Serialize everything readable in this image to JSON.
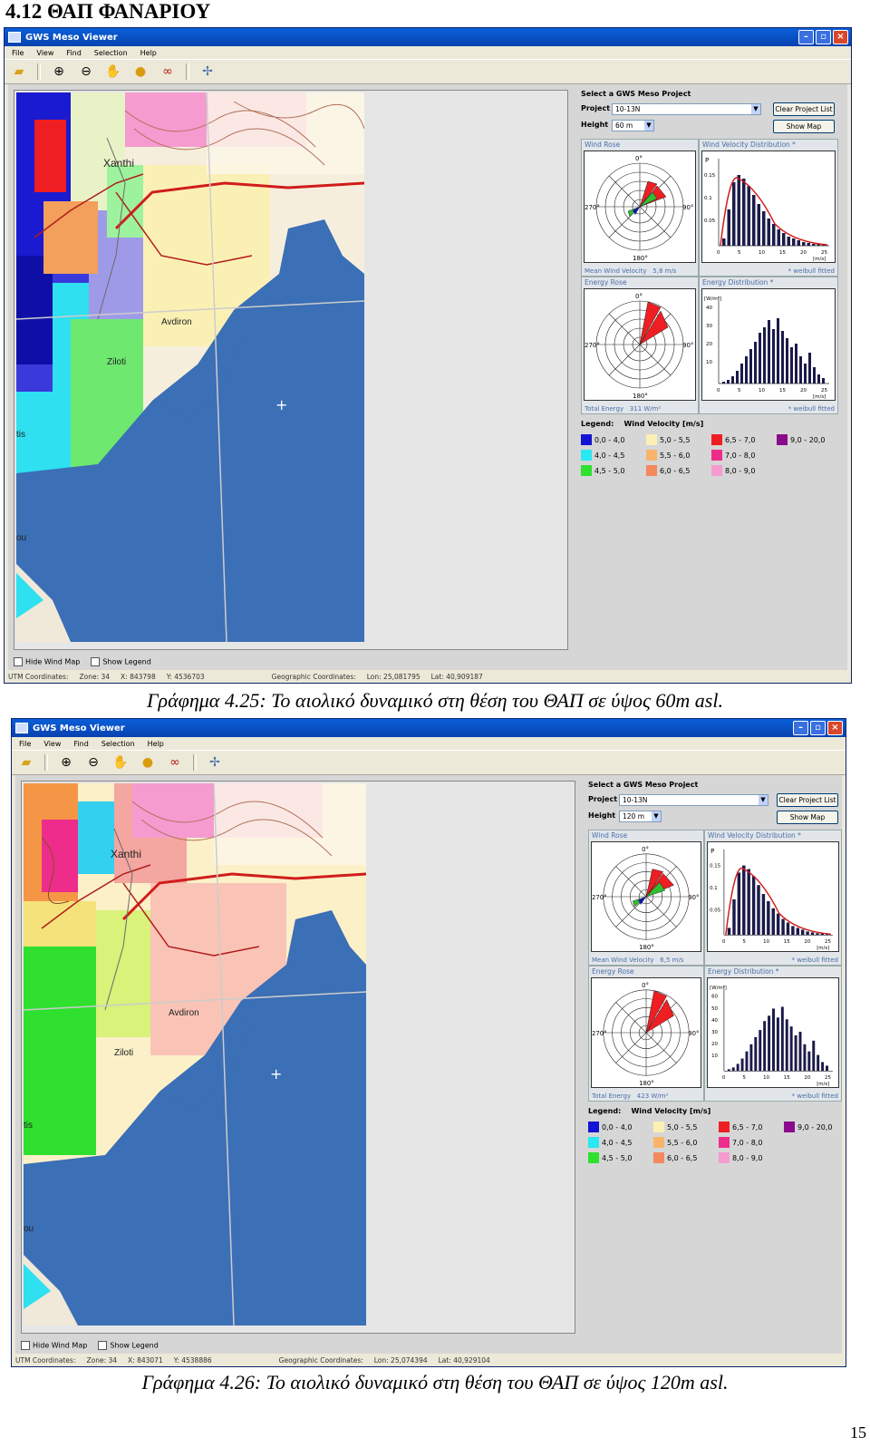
{
  "section_title": "4.12 ΘΑΠ ΦΑΝΑΡΙΟΥ",
  "page_number": "15",
  "common": {
    "app_title": "GWS Meso Viewer",
    "menu": [
      "File",
      "View",
      "Find",
      "Selection",
      "Help"
    ],
    "toolbar_icons": [
      "folder-open-icon",
      "zoom-in-icon",
      "zoom-out-icon",
      "pan-hand-icon",
      "globe-icon",
      "binoculars-icon",
      "wind-turbine-icon"
    ],
    "select_project_title": "Select a GWS Meso Project",
    "project_label": "Project",
    "project_value": "10-13N",
    "height_label": "Height",
    "clear_button": "Clear Project List",
    "show_map_button": "Show Map",
    "wind_rose_title": "Wind Rose",
    "velocity_dist_title": "Wind Velocity Distribution *",
    "energy_rose_title": "Energy Rose",
    "energy_dist_title": "Energy Distribution *",
    "mean_velocity_label": "Mean Wind Velocity",
    "total_energy_label": "Total Energy",
    "weibull_note": "* weibull fitted",
    "legend_title": "Legend:",
    "legend_subtitle": "Wind Velocity [m/s]",
    "hide_wind_map": "Hide Wind Map",
    "show_legend": "Show Legend",
    "utm_label": "UTM Coordinates:",
    "geo_label": "Geographic Coordinates:",
    "map_labels": {
      "xanthi": "Xanthi",
      "avdiron": "Avdiron",
      "ziloti": "Ziloti",
      "tis": "tis",
      "ou": "ou"
    },
    "rose_labels": {
      "n": "0°",
      "e": "90°",
      "s": "180°",
      "w": "270°"
    },
    "velocity_p_label": "P",
    "velocity_ticks_y": [
      "0.15",
      "0.1",
      "0.05"
    ],
    "velocity_ticks_x": [
      "0",
      "5",
      "10",
      "15",
      "20",
      "25"
    ],
    "velocity_unit": "[m/s]",
    "energy_unit_y": "[W/m²]",
    "energy_ticks_x": [
      "0",
      "5",
      "10",
      "15",
      "20",
      "25"
    ],
    "energy_unit_x": "[m/s]",
    "legend_items": [
      {
        "label": "0,0 - 4,0",
        "color": "#1414d4"
      },
      {
        "label": "4,0 - 4,5",
        "color": "#29e8f2"
      },
      {
        "label": "4,5 - 5,0",
        "color": "#2fe02f"
      },
      {
        "label": "5,0 - 5,5",
        "color": "#fbf0b4"
      },
      {
        "label": "5,5 - 6,0",
        "color": "#f8b46b"
      },
      {
        "label": "6,0 - 6,5",
        "color": "#f4895e"
      },
      {
        "label": "6,5 - 7,0",
        "color": "#ee1e22"
      },
      {
        "label": "7,0 - 8,0",
        "color": "#ee2c8c"
      },
      {
        "label": "8,0 - 9,0",
        "color": "#f59bd0"
      },
      {
        "label": "9,0 - 20,0",
        "color": "#8a0c8c"
      }
    ]
  },
  "views": [
    {
      "height_value": "60 m",
      "mean_velocity_value": "5,8 m/s",
      "total_energy_value": "311 W/m²",
      "energy_ticks_y": [
        "40",
        "30",
        "20",
        "10"
      ],
      "utm": {
        "zone": "Zone: 34",
        "x": "X: 843798",
        "y": "Y: 4536703"
      },
      "geo": {
        "lon": "Lon: 25,081795",
        "lat": "Lat: 40,909187"
      },
      "caption": "Γράφημα 4.25: Το αιολικό δυναμικό στη θέση του ΘΑΠ σε ύψος 60m asl."
    },
    {
      "height_value": "120 m",
      "mean_velocity_value": "6,5 m/s",
      "total_energy_value": "423 W/m²",
      "energy_ticks_y": [
        "60",
        "50",
        "40",
        "30",
        "20",
        "10"
      ],
      "utm": {
        "zone": "Zone: 34",
        "x": "X: 843071",
        "y": "Y: 4538886"
      },
      "geo": {
        "lon": "Lon: 25,074394",
        "lat": "Lat: 40,929104"
      },
      "caption": "Γράφημα 4.26: Το αιολικό δυναμικό στη θέση του ΘΑΠ σε ύψος 120m asl."
    }
  ]
}
